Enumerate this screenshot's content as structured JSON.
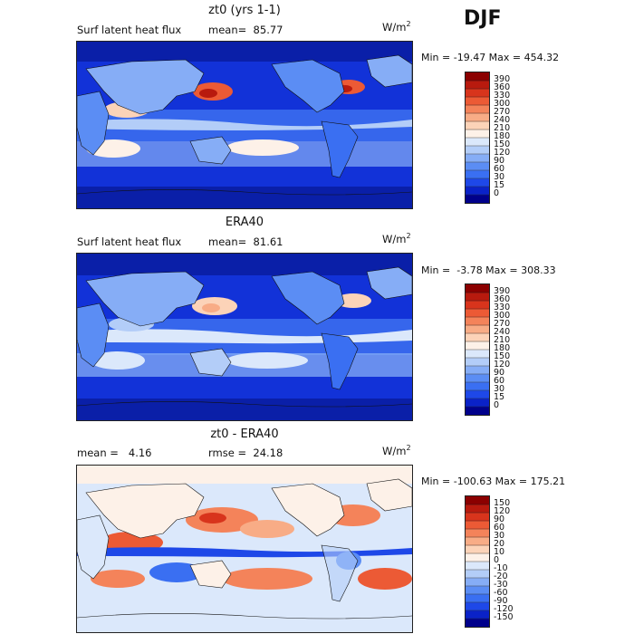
{
  "season": "DJF",
  "units": {
    "base": "W/m",
    "exp": "2"
  },
  "panels": [
    {
      "title": "zt0 (yrs 1-1)",
      "left_text": "Surf latent heat flux",
      "stat_text": "mean=  85.77",
      "minmax": "Min = -19.47 Max = 454.32",
      "palette": "flux"
    },
    {
      "title": "ERA40",
      "left_text": "Surf latent heat flux",
      "stat_text": "mean=  81.61",
      "minmax": "Min =  -3.78 Max = 308.33",
      "palette": "flux"
    },
    {
      "title": "zt0 - ERA40",
      "left_text": "mean =   4.16",
      "stat_text": "rmse =  24.18",
      "minmax": "Min = -100.63 Max = 175.21",
      "palette": "diff"
    }
  ],
  "chart_data": [
    {
      "type": "heatmap",
      "title": "zt0 (yrs 1-1)",
      "variable": "Surf latent heat flux",
      "units": "W/m^2",
      "mean": 85.77,
      "min": -19.47,
      "max": 454.32,
      "colorbar_levels": [
        0,
        15,
        30,
        60,
        90,
        120,
        150,
        180,
        210,
        240,
        270,
        300,
        330,
        360,
        390
      ],
      "colorbar_colors": [
        "#00008b",
        "#0a22c8",
        "#1e48e8",
        "#3a6ff2",
        "#5b8df4",
        "#86adf6",
        "#b3cdf8",
        "#dbe8fb",
        "#fdf1e8",
        "#fcd3b8",
        "#f8ac86",
        "#f4835a",
        "#ec5a35",
        "#d8341c",
        "#b81a0e",
        "#8b0000"
      ]
    },
    {
      "type": "heatmap",
      "title": "ERA40",
      "variable": "Surf latent heat flux",
      "units": "W/m^2",
      "mean": 81.61,
      "min": -3.78,
      "max": 308.33,
      "colorbar_levels": [
        0,
        15,
        30,
        60,
        90,
        120,
        150,
        180,
        210,
        240,
        270,
        300,
        330,
        360,
        390
      ],
      "colorbar_colors": [
        "#00008b",
        "#0a22c8",
        "#1e48e8",
        "#3a6ff2",
        "#5b8df4",
        "#86adf6",
        "#b3cdf8",
        "#dbe8fb",
        "#fdf1e8",
        "#fcd3b8",
        "#f8ac86",
        "#f4835a",
        "#ec5a35",
        "#d8341c",
        "#b81a0e",
        "#8b0000"
      ]
    },
    {
      "type": "heatmap",
      "title": "zt0 - ERA40",
      "units": "W/m^2",
      "mean": 4.16,
      "rmse": 24.18,
      "min": -100.63,
      "max": 175.21,
      "colorbar_levels": [
        -150,
        -120,
        -90,
        -60,
        -30,
        -20,
        -10,
        0,
        10,
        20,
        30,
        60,
        90,
        120,
        150
      ],
      "colorbar_colors": [
        "#00008b",
        "#0a22c8",
        "#1e48e8",
        "#3a6ff2",
        "#5b8df4",
        "#86adf6",
        "#b3cdf8",
        "#dbe8fb",
        "#fdf1e8",
        "#fcd3b8",
        "#f8ac86",
        "#f4835a",
        "#ec5a35",
        "#d8341c",
        "#b81a0e",
        "#8b0000"
      ]
    }
  ]
}
